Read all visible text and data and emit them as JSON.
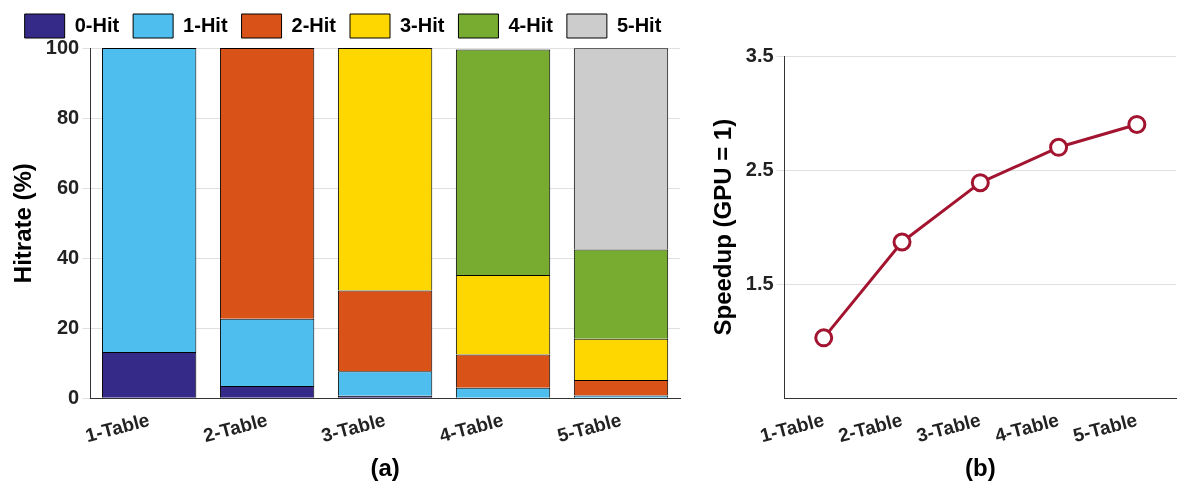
{
  "chart_data": [
    {
      "type": "bar",
      "stacked": true,
      "categories": [
        "1-Table",
        "2-Table",
        "3-Table",
        "4-Table",
        "5-Table"
      ],
      "xlabel": "(a)",
      "ylabel": "Hitrate (%)",
      "ylim": [
        0,
        100
      ],
      "yticks": [
        0,
        20,
        40,
        60,
        80,
        100
      ],
      "grid": "y",
      "legend": "top",
      "series": [
        {
          "name": "0-Hit",
          "color": "#352a87",
          "values": [
            13.2,
            3.5,
            0.7,
            null,
            null
          ]
        },
        {
          "name": "1-Hit",
          "color": "#4dbeee",
          "values": [
            86.8,
            19.2,
            7.0,
            3.0,
            0.8
          ]
        },
        {
          "name": "2-Hit",
          "color": "#d95319",
          "values": [
            null,
            77.3,
            23.1,
            9.5,
            4.4
          ]
        },
        {
          "name": "3-Hit",
          "color": "#ffd700",
          "values": [
            null,
            null,
            69.2,
            22.7,
            11.8
          ]
        },
        {
          "name": "4-Hit",
          "color": "#77ac30",
          "values": [
            null,
            null,
            null,
            64.4,
            25.5
          ]
        },
        {
          "name": "5-Hit",
          "color": "#cccccc",
          "values": [
            null,
            null,
            null,
            null,
            57.4
          ]
        }
      ]
    },
    {
      "type": "line",
      "categories": [
        "1-Table",
        "2-Table",
        "3-Table",
        "4-Table",
        "5-Table"
      ],
      "xlabel": "(b)",
      "ylabel": "Speedup (GPU = 1)",
      "ylim": [
        0.5,
        3.5
      ],
      "yticks": [
        1.5,
        2.5,
        3.5
      ],
      "grid": "y",
      "marker": "circle",
      "line_style": "solid",
      "series": [
        {
          "color": "#a2142f",
          "values": [
            1.03,
            1.87,
            2.39,
            2.7,
            2.9
          ]
        }
      ]
    }
  ]
}
